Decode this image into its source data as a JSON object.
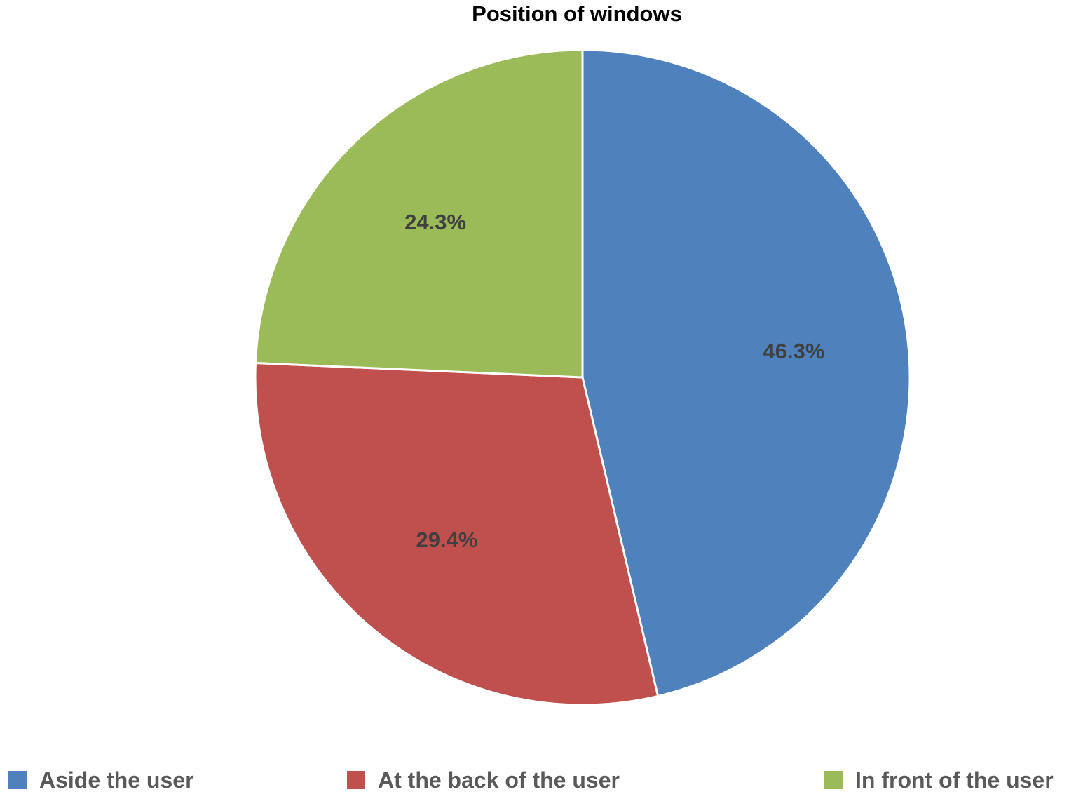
{
  "chart_data": {
    "type": "pie",
    "title": "Position of windows",
    "slices": [
      {
        "label": "Aside the user",
        "value": 46.3,
        "display": "46.3%",
        "color": "#4F81BD"
      },
      {
        "label": "At the back of the user",
        "value": 29.4,
        "display": "29.4%",
        "color": "#C0504D"
      },
      {
        "label": "In front of the user",
        "value": 24.3,
        "display": "24.3%",
        "color": "#9BBB59"
      }
    ],
    "legend_position": "bottom"
  }
}
